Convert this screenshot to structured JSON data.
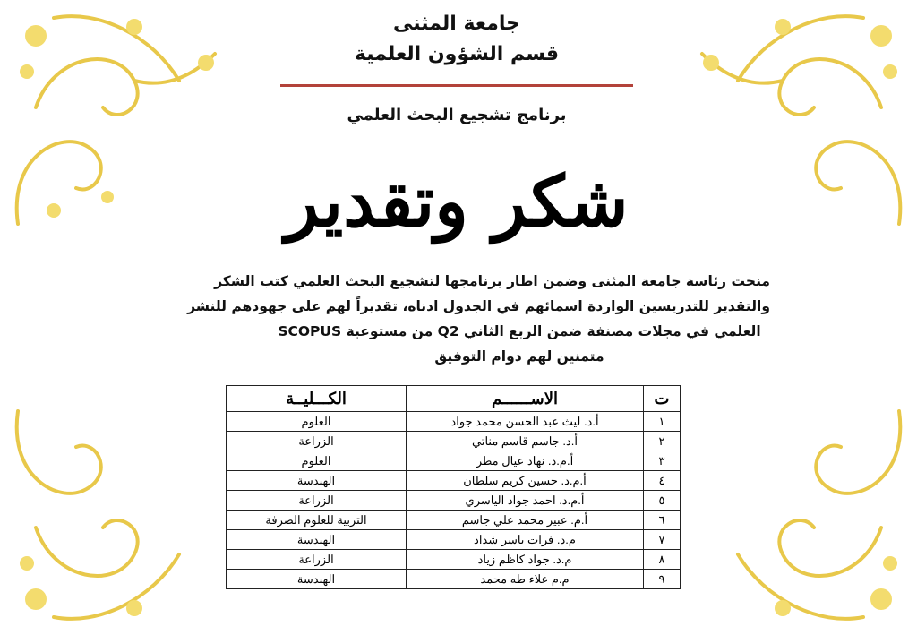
{
  "header": {
    "university": "جامعة المثنى",
    "department": "قسم الشؤون العلمية",
    "program": "برنامج تشجيع البحث العلمي",
    "calligraphy_title": "شكر وتقدير"
  },
  "paragraph": [
    "منحت رئاسة جامعة المثنى وضمن اطار برنامجها لتشجيع البحث العلمي كتب الشكر",
    "والتقدير للتدريسين الواردة اسمائهم في الجدول ادناه، تقديراً لهم على جهودهم للنشر",
    "العلمي في مجلات مصنفة ضمن الربع الثاني Q2 من مستوعبة SCOPUS",
    "متمنين لهم دوام التوفيق"
  ],
  "table": {
    "headers": [
      "ت",
      "الاســــــم",
      "الكـــليــة"
    ],
    "rows": [
      [
        "١",
        "أ.د. ليث عبد الحسن محمد جواد",
        "العلوم"
      ],
      [
        "٢",
        "أ.د. جاسم قاسم مناتي",
        "الزراعة"
      ],
      [
        "٣",
        "أ.م.د. نهاد عيال مطر",
        "العلوم"
      ],
      [
        "٤",
        "أ.م.د. حسين كريم سلطان",
        "الهندسة"
      ],
      [
        "٥",
        "أ.م.د. احمد جواد الياسري",
        "الزراعة"
      ],
      [
        "٦",
        "أ.م. عبير محمد علي جاسم",
        "التربية للعلوم الصرفة"
      ],
      [
        "٧",
        "م.د. فرات ياسر شداد",
        "الهندسة"
      ],
      [
        "٨",
        "م.د. جواد كاظم زياد",
        "الزراعة"
      ],
      [
        "٩",
        "م.م علاء طه محمد",
        "الهندسة"
      ]
    ]
  },
  "colors": {
    "divider": "#b3423a",
    "ornament": "#e8c84a"
  }
}
